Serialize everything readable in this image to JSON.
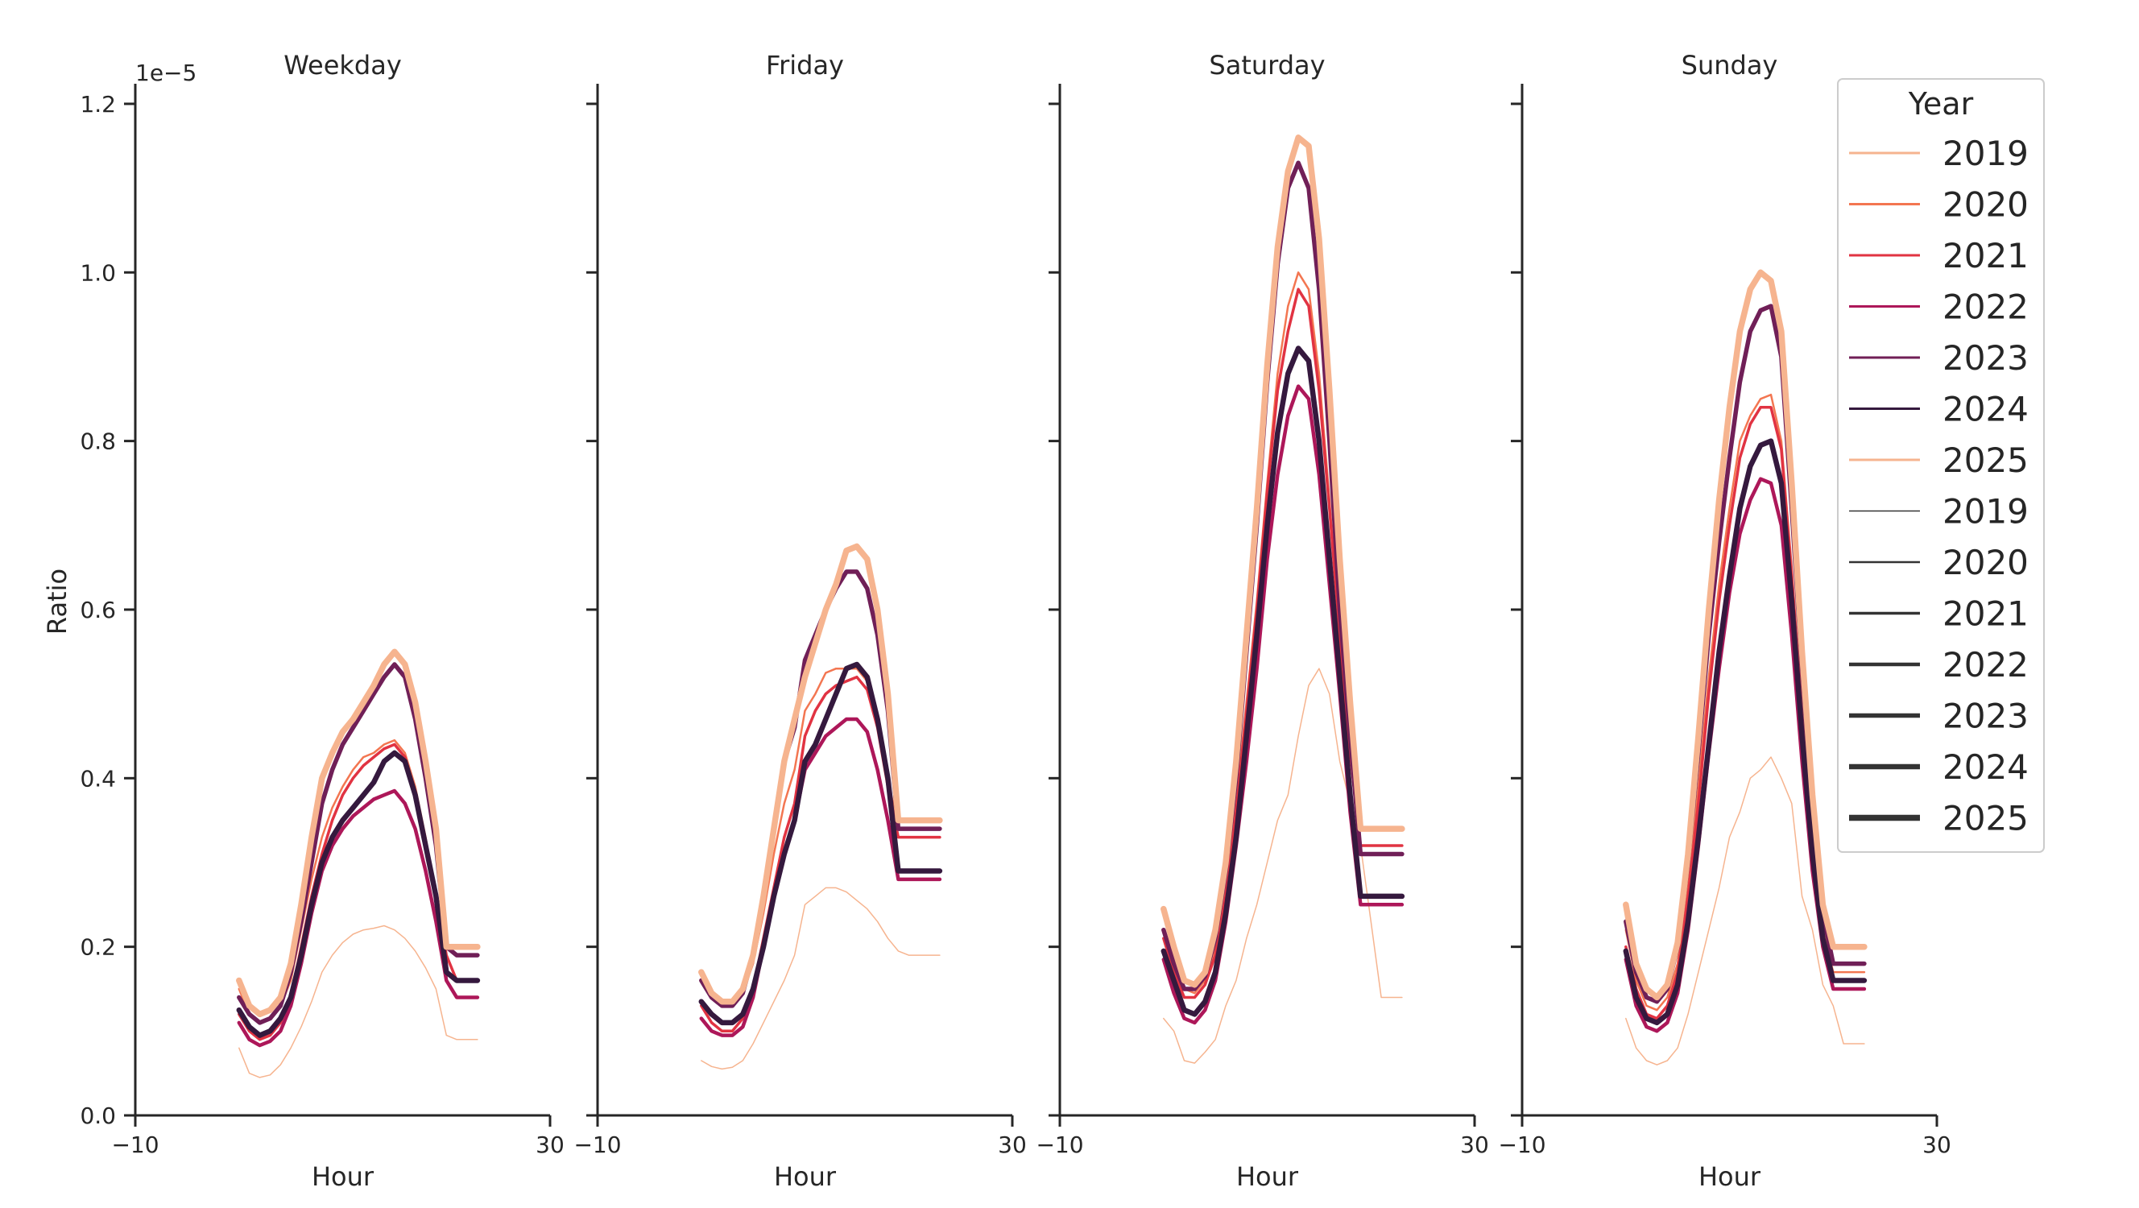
{
  "chart_data": {
    "type": "line",
    "ylabel": "Ratio",
    "y_scale_label": "1e−5",
    "y_scale": 1e-05,
    "ylim": [
      0,
      1.22
    ],
    "yticks": [
      0.0,
      0.2,
      0.4,
      0.6,
      0.8,
      1.0,
      1.2
    ],
    "ytick_labels": [
      "0.0",
      "0.2",
      "0.4",
      "0.6",
      "0.8",
      "1.0",
      "1.2"
    ],
    "xlim": [
      -10,
      30
    ],
    "xticks": [
      -10,
      30
    ],
    "xtick_labels": [
      "−10",
      "30"
    ],
    "grid": false,
    "legend": {
      "title": "Year",
      "placement": "top-right",
      "color_entries": [
        {
          "label": "2019",
          "color": "#f6b48f"
        },
        {
          "label": "2020",
          "color": "#f37651"
        },
        {
          "label": "2021",
          "color": "#e13342"
        },
        {
          "label": "2022",
          "color": "#ad1759"
        },
        {
          "label": "2023",
          "color": "#701f57"
        },
        {
          "label": "2024",
          "color": "#35193e"
        },
        {
          "label": "2025",
          "color": "#f6b48f"
        }
      ],
      "width_entries": [
        {
          "label": "2019",
          "width": 1.5
        },
        {
          "label": "2020",
          "width": 2.5
        },
        {
          "label": "2021",
          "width": 3.5
        },
        {
          "label": "2022",
          "width": 4.5
        },
        {
          "label": "2023",
          "width": 5.5
        },
        {
          "label": "2024",
          "width": 6.5
        },
        {
          "label": "2025",
          "width": 7.5
        }
      ]
    },
    "x_hours": [
      0,
      1,
      2,
      3,
      4,
      5,
      6,
      7,
      8,
      9,
      10,
      11,
      12,
      13,
      14,
      15,
      16,
      17,
      18,
      19,
      20,
      21,
      22,
      23
    ],
    "panels": [
      {
        "title": "Weekday",
        "xlabel": "Hour",
        "series": [
          {
            "year": "2019",
            "values": [
              0.08,
              0.05,
              0.045,
              0.048,
              0.06,
              0.08,
              0.105,
              0.135,
              0.17,
              0.19,
              0.205,
              0.215,
              0.22,
              0.222,
              0.225,
              0.22,
              0.21,
              0.195,
              0.175,
              0.15,
              0.095,
              0.09,
              0.09,
              0.09
            ]
          },
          {
            "year": "2020",
            "values": [
              0.15,
              0.12,
              0.11,
              0.115,
              0.13,
              0.16,
              0.22,
              0.28,
              0.33,
              0.365,
              0.39,
              0.41,
              0.425,
              0.43,
              0.44,
              0.445,
              0.43,
              0.39,
              0.33,
              0.26,
              0.19,
              0.16,
              0.16,
              0.16
            ]
          },
          {
            "year": "2021",
            "values": [
              0.12,
              0.1,
              0.09,
              0.095,
              0.11,
              0.14,
              0.2,
              0.26,
              0.31,
              0.35,
              0.38,
              0.4,
              0.415,
              0.425,
              0.435,
              0.44,
              0.425,
              0.385,
              0.325,
              0.26,
              0.19,
              0.16,
              0.16,
              0.16
            ]
          },
          {
            "year": "2022",
            "values": [
              0.11,
              0.09,
              0.083,
              0.088,
              0.1,
              0.13,
              0.18,
              0.24,
              0.29,
              0.32,
              0.34,
              0.355,
              0.365,
              0.375,
              0.38,
              0.385,
              0.37,
              0.34,
              0.29,
              0.23,
              0.16,
              0.14,
              0.14,
              0.14
            ]
          },
          {
            "year": "2023",
            "values": [
              0.14,
              0.12,
              0.11,
              0.115,
              0.13,
              0.17,
              0.23,
              0.3,
              0.37,
              0.41,
              0.44,
              0.46,
              0.48,
              0.5,
              0.52,
              0.535,
              0.52,
              0.47,
              0.4,
              0.32,
              0.2,
              0.19,
              0.19,
              0.19
            ]
          },
          {
            "year": "2024",
            "values": [
              0.125,
              0.105,
              0.095,
              0.1,
              0.115,
              0.14,
              0.19,
              0.25,
              0.3,
              0.33,
              0.35,
              0.365,
              0.38,
              0.395,
              0.42,
              0.43,
              0.42,
              0.38,
              0.32,
              0.26,
              0.17,
              0.16,
              0.16,
              0.16
            ]
          },
          {
            "year": "2025",
            "values": [
              0.16,
              0.13,
              0.12,
              0.125,
              0.14,
              0.18,
              0.25,
              0.33,
              0.4,
              0.43,
              0.455,
              0.47,
              0.49,
              0.51,
              0.535,
              0.55,
              0.535,
              0.49,
              0.42,
              0.34,
              0.2,
              0.2,
              0.2,
              0.2
            ]
          }
        ]
      },
      {
        "title": "Friday",
        "xlabel": "Hour",
        "series": [
          {
            "year": "2019",
            "values": [
              0.065,
              0.058,
              0.055,
              0.057,
              0.065,
              0.085,
              0.11,
              0.135,
              0.16,
              0.19,
              0.25,
              0.26,
              0.27,
              0.27,
              0.265,
              0.255,
              0.245,
              0.23,
              0.21,
              0.195,
              0.19,
              0.19,
              0.19,
              0.19
            ]
          },
          {
            "year": "2020",
            "values": [
              0.16,
              0.14,
              0.13,
              0.13,
              0.145,
              0.18,
              0.24,
              0.31,
              0.37,
              0.41,
              0.48,
              0.5,
              0.525,
              0.53,
              0.53,
              0.53,
              0.515,
              0.47,
              0.4,
              0.34,
              0.34,
              0.34,
              0.34,
              0.34
            ]
          },
          {
            "year": "2021",
            "values": [
              0.13,
              0.11,
              0.1,
              0.1,
              0.115,
              0.15,
              0.21,
              0.27,
              0.33,
              0.37,
              0.45,
              0.48,
              0.5,
              0.51,
              0.515,
              0.52,
              0.505,
              0.46,
              0.39,
              0.33,
              0.33,
              0.33,
              0.33,
              0.33
            ]
          },
          {
            "year": "2022",
            "values": [
              0.115,
              0.1,
              0.095,
              0.095,
              0.105,
              0.14,
              0.2,
              0.26,
              0.31,
              0.35,
              0.41,
              0.43,
              0.45,
              0.46,
              0.47,
              0.47,
              0.455,
              0.41,
              0.35,
              0.28,
              0.28,
              0.28,
              0.28,
              0.28
            ]
          },
          {
            "year": "2023",
            "values": [
              0.16,
              0.14,
              0.13,
              0.13,
              0.145,
              0.19,
              0.26,
              0.34,
              0.42,
              0.46,
              0.54,
              0.57,
              0.6,
              0.625,
              0.645,
              0.645,
              0.625,
              0.57,
              0.48,
              0.34,
              0.34,
              0.34,
              0.34,
              0.34
            ]
          },
          {
            "year": "2024",
            "values": [
              0.135,
              0.12,
              0.11,
              0.11,
              0.12,
              0.15,
              0.2,
              0.26,
              0.31,
              0.35,
              0.42,
              0.44,
              0.47,
              0.5,
              0.53,
              0.535,
              0.52,
              0.47,
              0.4,
              0.29,
              0.29,
              0.29,
              0.29,
              0.29
            ]
          },
          {
            "year": "2025",
            "values": [
              0.17,
              0.145,
              0.135,
              0.135,
              0.15,
              0.19,
              0.26,
              0.34,
              0.42,
              0.47,
              0.52,
              0.56,
              0.6,
              0.63,
              0.67,
              0.675,
              0.66,
              0.6,
              0.5,
              0.35,
              0.35,
              0.35,
              0.35,
              0.35
            ]
          }
        ]
      },
      {
        "title": "Saturday",
        "xlabel": "Hour",
        "series": [
          {
            "year": "2019",
            "values": [
              0.115,
              0.1,
              0.065,
              0.062,
              0.075,
              0.09,
              0.13,
              0.16,
              0.21,
              0.25,
              0.3,
              0.35,
              0.38,
              0.45,
              0.51,
              0.53,
              0.5,
              0.42,
              0.37,
              0.32,
              0.23,
              0.14,
              0.14,
              0.14
            ]
          },
          {
            "year": "2020",
            "values": [
              0.22,
              0.18,
              0.15,
              0.145,
              0.16,
              0.2,
              0.27,
              0.37,
              0.49,
              0.61,
              0.75,
              0.88,
              0.96,
              1.0,
              0.98,
              0.88,
              0.73,
              0.57,
              0.43,
              0.31,
              0.31,
              0.31,
              0.31,
              0.31
            ]
          },
          {
            "year": "2021",
            "values": [
              0.21,
              0.17,
              0.14,
              0.14,
              0.155,
              0.19,
              0.26,
              0.36,
              0.48,
              0.6,
              0.74,
              0.86,
              0.93,
              0.98,
              0.96,
              0.86,
              0.72,
              0.57,
              0.43,
              0.32,
              0.32,
              0.32,
              0.32,
              0.32
            ]
          },
          {
            "year": "2022",
            "values": [
              0.185,
              0.145,
              0.115,
              0.11,
              0.125,
              0.16,
              0.23,
              0.32,
              0.42,
              0.53,
              0.66,
              0.76,
              0.83,
              0.865,
              0.85,
              0.76,
              0.63,
              0.5,
              0.36,
              0.25,
              0.25,
              0.25,
              0.25,
              0.25
            ]
          },
          {
            "year": "2023",
            "values": [
              0.22,
              0.18,
              0.15,
              0.15,
              0.165,
              0.21,
              0.29,
              0.4,
              0.55,
              0.7,
              0.87,
              1.01,
              1.1,
              1.13,
              1.1,
              0.98,
              0.8,
              0.6,
              0.45,
              0.31,
              0.31,
              0.31,
              0.31,
              0.31
            ]
          },
          {
            "year": "2024",
            "values": [
              0.195,
              0.16,
              0.125,
              0.12,
              0.135,
              0.17,
              0.24,
              0.33,
              0.45,
              0.57,
              0.7,
              0.81,
              0.88,
              0.91,
              0.895,
              0.8,
              0.66,
              0.52,
              0.38,
              0.26,
              0.26,
              0.26,
              0.26,
              0.26
            ]
          },
          {
            "year": "2025",
            "values": [
              0.245,
              0.2,
              0.16,
              0.155,
              0.17,
              0.22,
              0.3,
              0.42,
              0.57,
              0.72,
              0.89,
              1.03,
              1.12,
              1.16,
              1.15,
              1.04,
              0.86,
              0.66,
              0.49,
              0.34,
              0.34,
              0.34,
              0.34,
              0.34
            ]
          }
        ]
      },
      {
        "title": "Sunday",
        "xlabel": "Hour",
        "series": [
          {
            "year": "2019",
            "values": [
              0.115,
              0.08,
              0.065,
              0.06,
              0.065,
              0.08,
              0.12,
              0.17,
              0.22,
              0.27,
              0.33,
              0.36,
              0.4,
              0.41,
              0.425,
              0.4,
              0.37,
              0.26,
              0.22,
              0.155,
              0.13,
              0.085,
              0.085,
              0.085
            ]
          },
          {
            "year": "2020",
            "values": [
              0.22,
              0.16,
              0.13,
              0.125,
              0.14,
              0.18,
              0.27,
              0.39,
              0.52,
              0.63,
              0.72,
              0.8,
              0.83,
              0.85,
              0.855,
              0.8,
              0.65,
              0.48,
              0.33,
              0.22,
              0.17,
              0.17,
              0.17,
              0.17
            ]
          },
          {
            "year": "2021",
            "values": [
              0.2,
              0.15,
              0.12,
              0.115,
              0.13,
              0.17,
              0.26,
              0.37,
              0.5,
              0.61,
              0.7,
              0.78,
              0.82,
              0.84,
              0.84,
              0.79,
              0.64,
              0.47,
              0.32,
              0.21,
              0.16,
              0.16,
              0.16,
              0.16
            ]
          },
          {
            "year": "2022",
            "values": [
              0.185,
              0.13,
              0.105,
              0.1,
              0.11,
              0.145,
              0.22,
              0.32,
              0.43,
              0.53,
              0.62,
              0.69,
              0.73,
              0.755,
              0.75,
              0.7,
              0.57,
              0.42,
              0.29,
              0.2,
              0.15,
              0.15,
              0.15,
              0.15
            ]
          },
          {
            "year": "2023",
            "values": [
              0.23,
              0.17,
              0.14,
              0.135,
              0.15,
              0.2,
              0.3,
              0.43,
              0.57,
              0.68,
              0.78,
              0.87,
              0.93,
              0.955,
              0.96,
              0.9,
              0.72,
              0.53,
              0.36,
              0.24,
              0.18,
              0.18,
              0.18,
              0.18
            ]
          },
          {
            "year": "2024",
            "values": [
              0.195,
              0.14,
              0.115,
              0.11,
              0.12,
              0.155,
              0.23,
              0.33,
              0.44,
              0.55,
              0.64,
              0.72,
              0.77,
              0.795,
              0.8,
              0.75,
              0.61,
              0.45,
              0.31,
              0.21,
              0.16,
              0.16,
              0.16,
              0.16
            ]
          },
          {
            "year": "2025",
            "values": [
              0.25,
              0.18,
              0.15,
              0.14,
              0.155,
              0.205,
              0.31,
              0.45,
              0.6,
              0.73,
              0.84,
              0.93,
              0.98,
              1.0,
              0.99,
              0.93,
              0.75,
              0.55,
              0.38,
              0.25,
              0.2,
              0.2,
              0.2,
              0.2
            ]
          }
        ]
      }
    ]
  }
}
